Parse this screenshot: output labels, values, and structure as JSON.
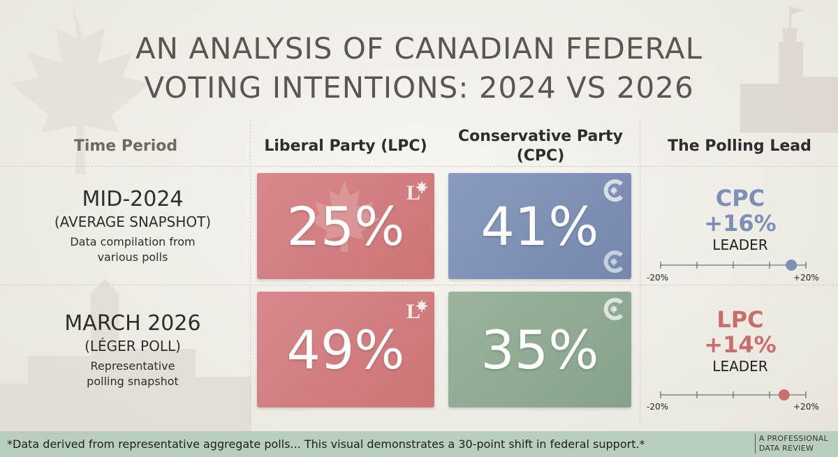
{
  "title_lines": [
    "AN ANALYSIS OF CANADIAN FEDERAL",
    "VOTING INTENTIONS: 2024 VS 2026"
  ],
  "headers": {
    "time": "Time Period",
    "lpc": "Liberal Party (LPC)",
    "cpc_line1": "Conservative Party",
    "cpc_line2": "(CPC)",
    "lead": "The Polling Lead"
  },
  "colors": {
    "lpc_card": "#d0787a",
    "cpc_card_2024": "#7d90b4",
    "cpc_card_2026": "#8ba68f",
    "cpc_text": "#7d8fb5",
    "lpc_text": "#c96d6d",
    "footer": "#b9cfbb"
  },
  "chart_data": {
    "type": "table",
    "rows": [
      {
        "period": "MID-2024",
        "period_sub": "(AVERAGE SNAPSHOT)",
        "note_line1": "Data compilation from",
        "note_line2": "various polls",
        "lpc": 25,
        "lpc_label": "25%",
        "cpc": 41,
        "cpc_label": "41%",
        "leader": "CPC",
        "lead_label": "+16%",
        "leader_word": "LEADER",
        "lead_value": 16,
        "scale_min_label": "-20%",
        "scale_max_label": "+20%"
      },
      {
        "period": "MARCH 2026",
        "period_sub": "(LÉGER POLL)",
        "note_line1": "Representative",
        "note_line2": "polling snapshot",
        "lpc": 49,
        "lpc_label": "49%",
        "cpc": 35,
        "cpc_label": "35%",
        "leader": "LPC",
        "lead_label": "+14%",
        "leader_word": "LEADER",
        "lead_value": 14,
        "scale_min_label": "-20%",
        "scale_max_label": "+20%"
      }
    ],
    "scale_range": [
      -20,
      20
    ]
  },
  "footer": {
    "note": "*Data derived from representative aggregate polls... This visual demonstrates a 30-point shift in federal support.*",
    "brand_line1": "A PROFESSIONAL",
    "brand_line2": "DATA REVIEW"
  },
  "icons": {
    "lpc_logo": "liberal-l-maple-icon",
    "cpc_logo": "conservative-c-maple-icon",
    "background": "maple-leaf-and-parliament-silhouettes"
  }
}
